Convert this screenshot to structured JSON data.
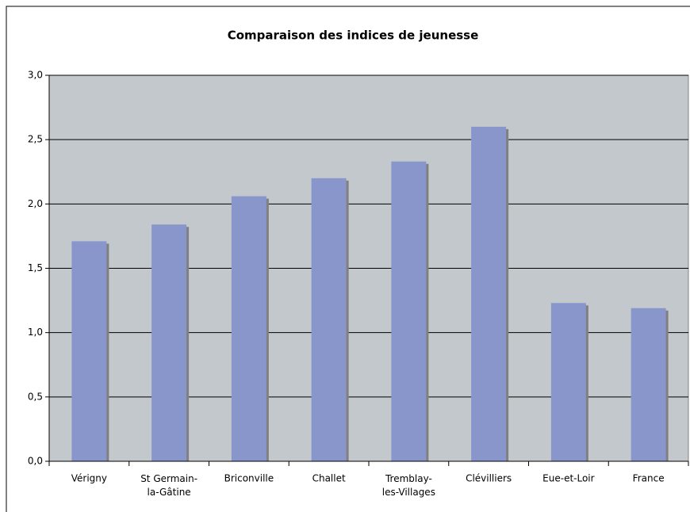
{
  "chart_data": {
    "type": "bar",
    "title": "Comparaison des indices de jeunesse",
    "categories": [
      "Vérigny",
      "St Germain-la-Gâtine",
      "Briconville",
      "Challet",
      "Tremblay-les-Villages",
      "Clévilliers",
      "Eue-et-Loir",
      "France"
    ],
    "values": [
      1.71,
      1.84,
      2.06,
      2.2,
      2.33,
      2.6,
      1.23,
      1.19
    ],
    "color": "#8896cc",
    "ylim": [
      0,
      3
    ],
    "yticks": [
      {
        "value": 0,
        "label": "0,0"
      },
      {
        "value": 0.5,
        "label": "0,5"
      },
      {
        "value": 1,
        "label": "1,0"
      },
      {
        "value": 1.5,
        "label": "1,5"
      },
      {
        "value": 2,
        "label": "2,0"
      },
      {
        "value": 2.5,
        "label": "2,5"
      },
      {
        "value": 3,
        "label": "3,0"
      }
    ],
    "grid": true
  }
}
